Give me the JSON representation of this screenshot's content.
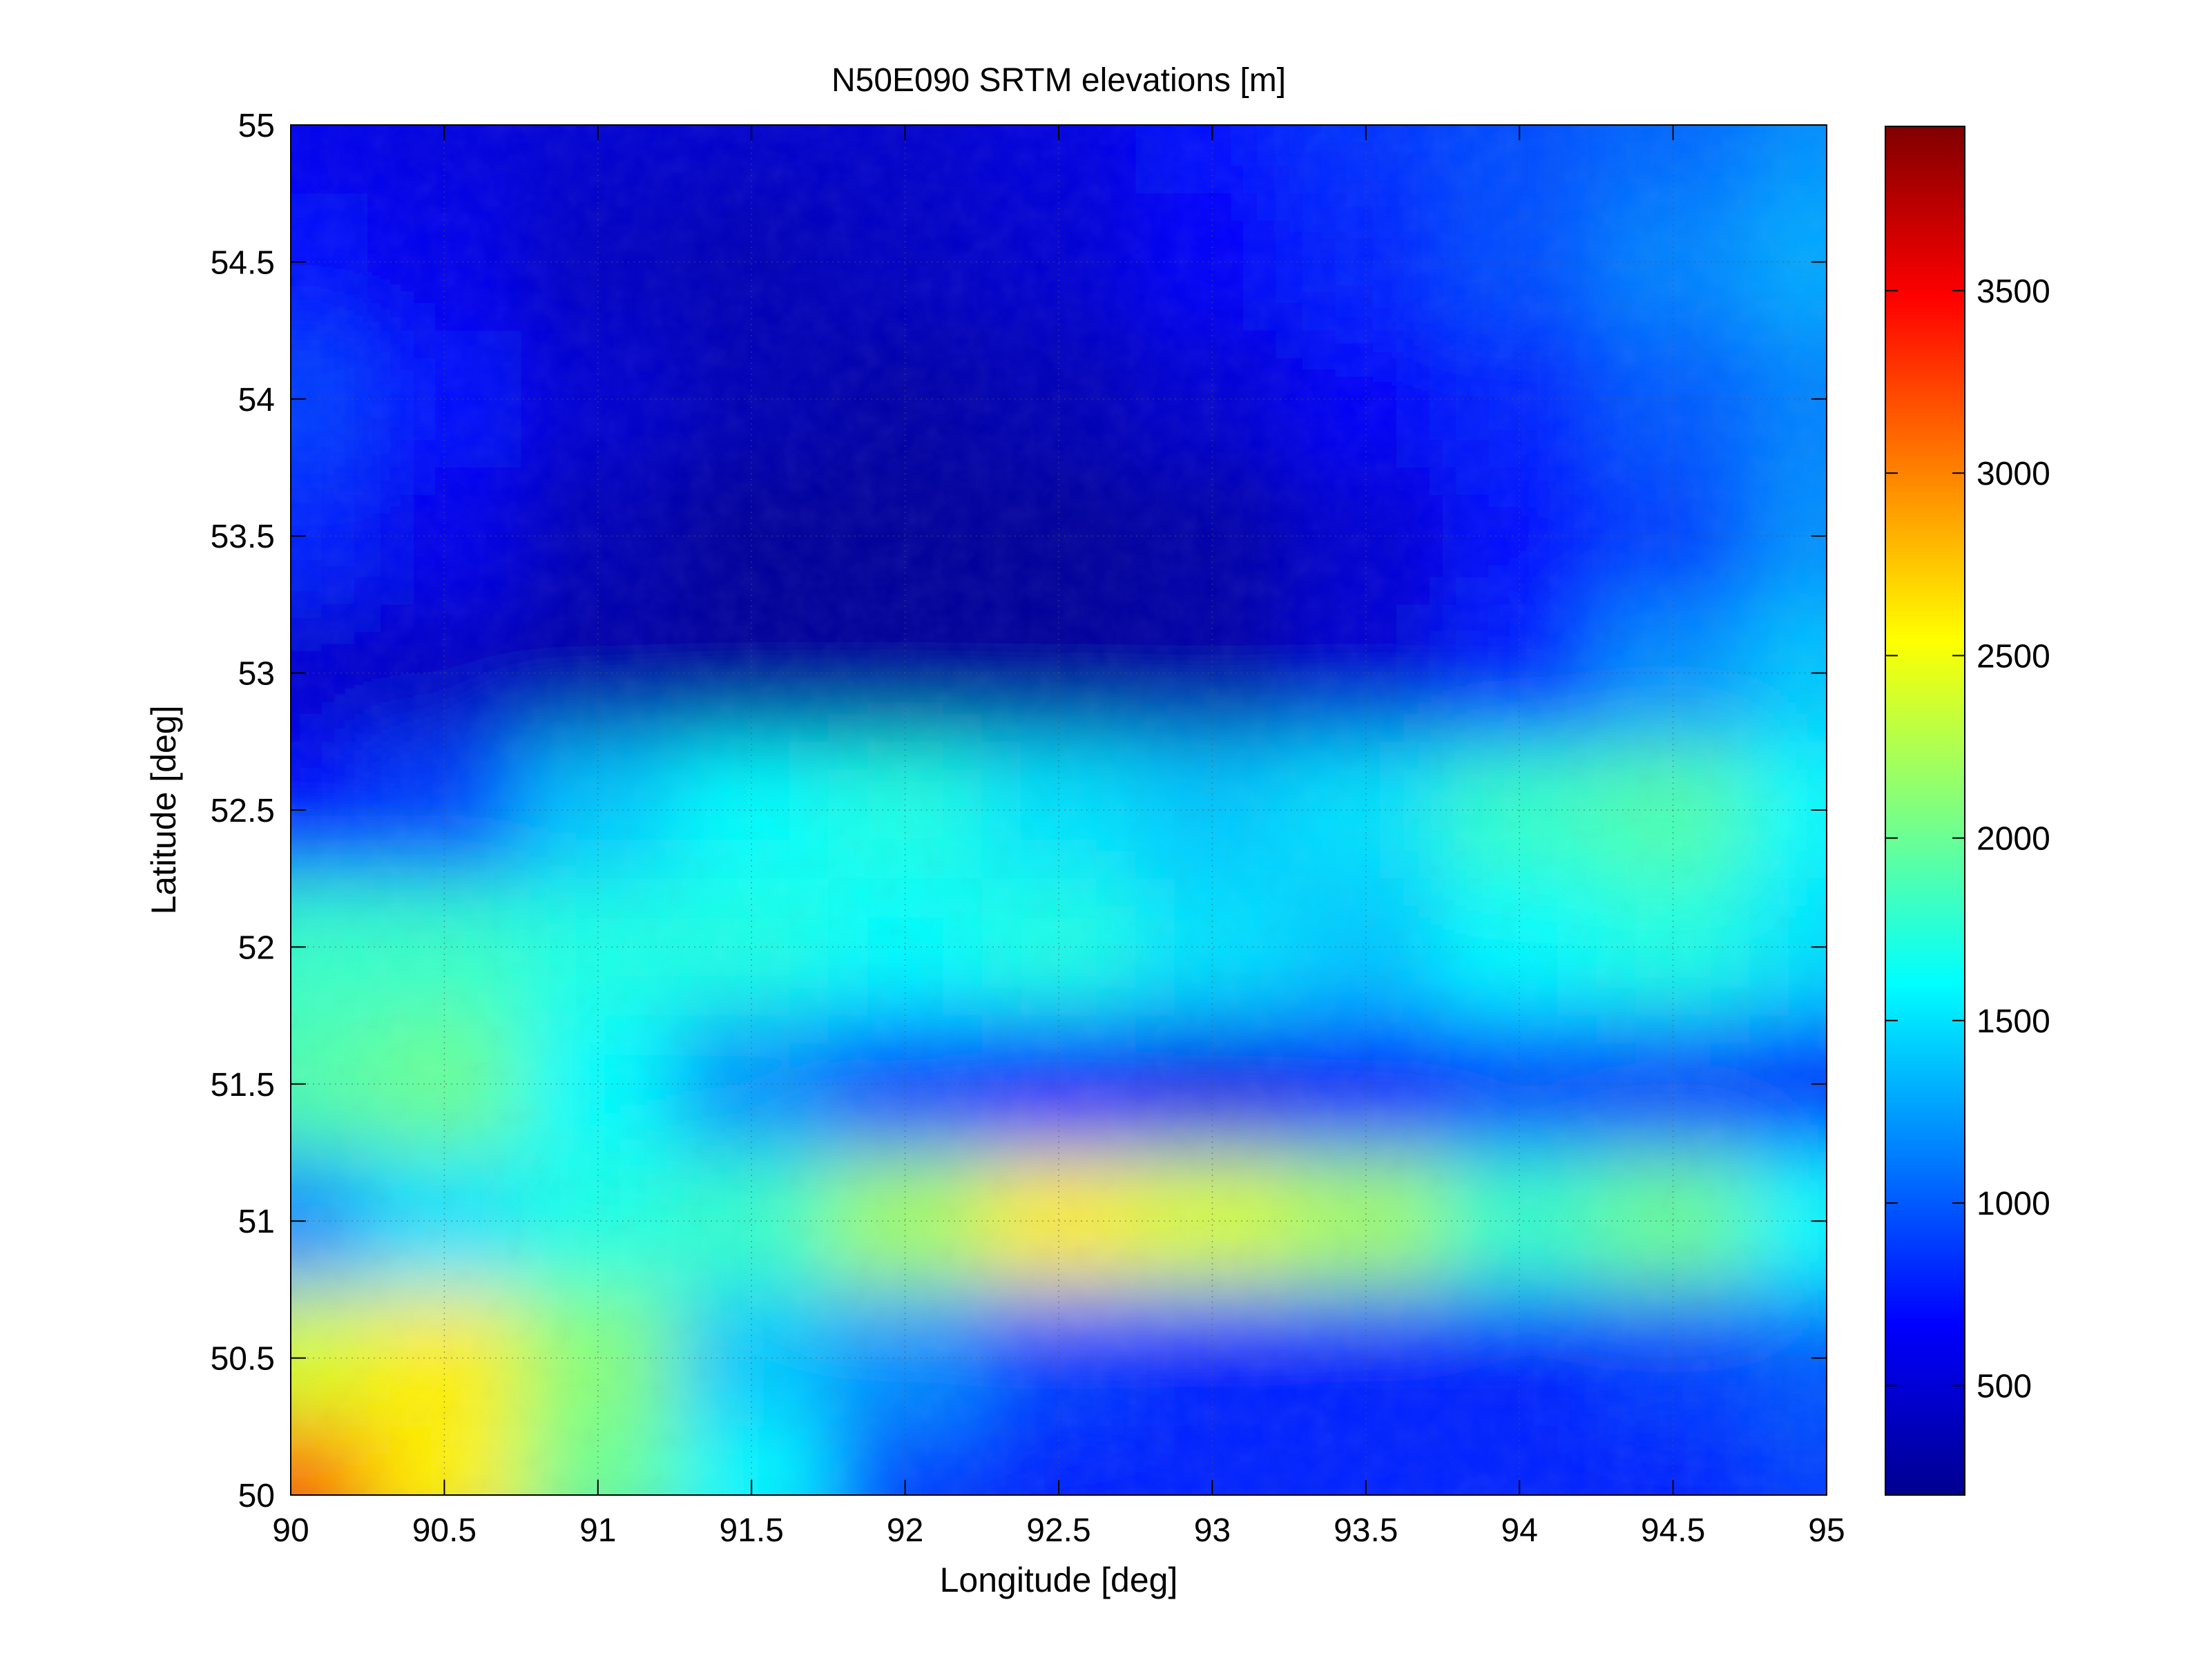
{
  "chart_data": {
    "type": "heatmap",
    "title": "N50E090 SRTM elevations [m]",
    "xlabel": "Longitude [deg]",
    "ylabel": "Latitude [deg]",
    "xlim": [
      90,
      95
    ],
    "ylim": [
      50,
      55
    ],
    "x_ticks": [
      90,
      90.5,
      91,
      91.5,
      92,
      92.5,
      93,
      93.5,
      94,
      94.5,
      95
    ],
    "x_tick_labels": [
      "90",
      "90.5",
      "91",
      "91.5",
      "92",
      "92.5",
      "93",
      "93.5",
      "94",
      "94.5",
      "95"
    ],
    "y_ticks": [
      50,
      50.5,
      51,
      51.5,
      52,
      52.5,
      53,
      53.5,
      54,
      54.5,
      55
    ],
    "y_tick_labels": [
      "50",
      "50.5",
      "51",
      "51.5",
      "52",
      "52.5",
      "53",
      "53.5",
      "54",
      "54.5",
      "55"
    ],
    "grid": true,
    "colormap": "jet",
    "colorbar": {
      "range": [
        200,
        3950
      ],
      "ticks": [
        500,
        1000,
        1500,
        2000,
        2500,
        3000,
        3500
      ],
      "tick_labels": [
        "500",
        "1000",
        "1500",
        "2000",
        "2500",
        "3000",
        "3500"
      ]
    },
    "grid_lon": [
      90,
      90.5,
      91,
      91.5,
      92,
      92.5,
      93,
      93.5,
      94,
      94.5,
      95
    ],
    "grid_lat": [
      55,
      54.5,
      54,
      53.5,
      53,
      52.5,
      52,
      51.5,
      51,
      50.5,
      50
    ],
    "elevation_m": [
      [
        600,
        550,
        500,
        480,
        480,
        550,
        700,
        850,
        950,
        1050,
        1200
      ],
      [
        700,
        600,
        450,
        400,
        450,
        500,
        650,
        800,
        950,
        1150,
        1300
      ],
      [
        900,
        700,
        500,
        400,
        350,
        400,
        500,
        650,
        800,
        1000,
        1150
      ],
      [
        800,
        600,
        400,
        300,
        300,
        300,
        350,
        500,
        700,
        900,
        1200
      ],
      [
        500,
        450,
        350,
        300,
        300,
        300,
        350,
        500,
        800,
        1200,
        1400
      ],
      [
        700,
        900,
        1400,
        1600,
        1700,
        1500,
        1400,
        1500,
        1800,
        1900,
        1600
      ],
      [
        1800,
        1800,
        1700,
        1700,
        1600,
        1700,
        1500,
        1400,
        1600,
        1700,
        1500
      ],
      [
        1900,
        2000,
        1600,
        1200,
        900,
        700,
        600,
        700,
        900,
        900,
        800
      ],
      [
        1200,
        1500,
        1700,
        1800,
        2200,
        2600,
        2400,
        2200,
        1800,
        2000,
        1600
      ],
      [
        2400,
        2600,
        2100,
        1400,
        1200,
        900,
        800,
        800,
        800,
        900,
        1000
      ],
      [
        3100,
        2600,
        2000,
        1600,
        900,
        800,
        800,
        800,
        800,
        800,
        900
      ]
    ]
  }
}
